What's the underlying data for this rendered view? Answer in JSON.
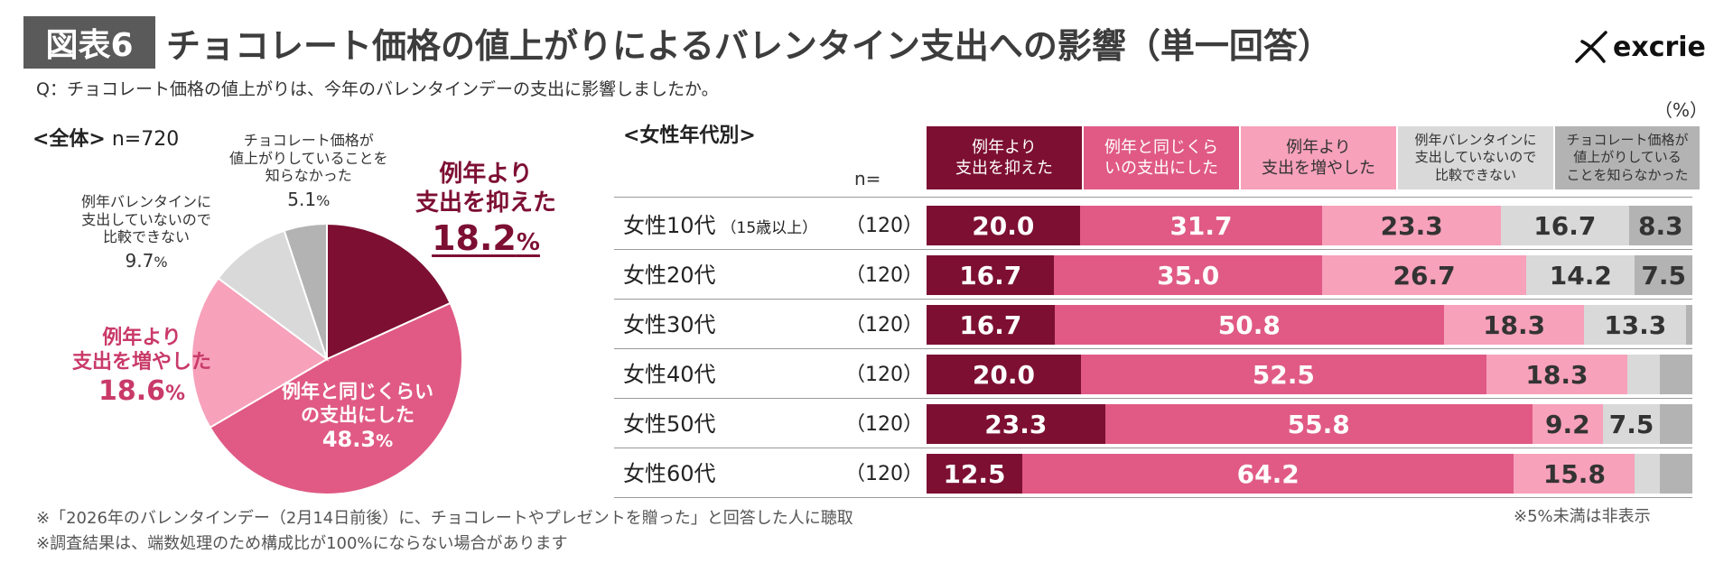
{
  "header": {
    "figure_badge": "図表6",
    "title": "チョコレート価格の値上がりによるバレンタイン支出への影響（単一回答）",
    "brand": "excrie"
  },
  "question": "Q：チョコレート価格の値上がりは、今年のバレンタインデーの支出に影響しましたか。",
  "overall": {
    "label_bold": "<全体>",
    "label_n": " n=720"
  },
  "pie_labels": {
    "suppressed_line1": "例年より",
    "suppressed_line2": "支出を抑えた",
    "suppressed_value": "18.2",
    "same_line1": "例年と同じくらい",
    "same_line2": "の支出にした",
    "same_value": "48.3",
    "increased_line1": "例年より",
    "increased_line2": "支出を増やした",
    "increased_value": "18.6",
    "cannot_line1": "例年バレンタインに",
    "cannot_line2": "支出していないので",
    "cannot_line3": "比較できない",
    "cannot_value": "9.7",
    "dontknow_line1": "チョコレート価格が",
    "dontknow_line2": "値上がりしていることを",
    "dontknow_line3": "知らなかった",
    "dontknow_value": "5.1",
    "pct": "%"
  },
  "age_section": {
    "label": "<女性年代別>",
    "n_label": "n=",
    "unit": "（%）"
  },
  "legend_headers": [
    {
      "line1": "例年より",
      "line2": "支出を抑えた",
      "line3": ""
    },
    {
      "line1": "例年と同じくら",
      "line2": "いの支出にした",
      "line3": ""
    },
    {
      "line1": "例年より",
      "line2": "支出を増やした",
      "line3": ""
    },
    {
      "line1": "例年バレンタインに",
      "line2": "支出していないので",
      "line3": "比較できない"
    },
    {
      "line1": "チョコレート価格が",
      "line2": "値上がりしている",
      "line3": "ことを知らなかった"
    }
  ],
  "row_texts": [
    {
      "label": "女性10代",
      "sub": "（15歳以上）",
      "n": "（120）"
    },
    {
      "label": "女性20代",
      "sub": "",
      "n": "（120）"
    },
    {
      "label": "女性30代",
      "sub": "",
      "n": "（120）"
    },
    {
      "label": "女性40代",
      "sub": "",
      "n": "（120）"
    },
    {
      "label": "女性50代",
      "sub": "",
      "n": "（120）"
    },
    {
      "label": "女性60代",
      "sub": "",
      "n": "（120）"
    }
  ],
  "footnotes": {
    "note1": "※「2026年のバレンタインデー（2月14日前後）に、チョコレートやプレゼントを贈った」と回答した人に聴取",
    "note2": "※調査結果は、端数処理のため構成比が100%にならない場合があります",
    "hidden_note": "※5%未満は非表示"
  },
  "colors": {
    "suppressed": "#7d0f33",
    "same": "#e05a85",
    "increased": "#f7a1bb",
    "cannot": "#d9d9d9",
    "dontknow": "#b3b3b3",
    "badge_bg": "#5a5a5a"
  },
  "chart_data": [
    {
      "type": "pie",
      "title": "<全体> n=720",
      "categories": [
        "例年より支出を抑えた",
        "例年と同じくらいの支出にした",
        "例年より支出を増やした",
        "例年バレンタインに支出していないので比較できない",
        "チョコレート価格が値上がりしていることを知らなかった"
      ],
      "values": [
        18.2,
        48.3,
        18.6,
        9.7,
        5.1
      ]
    },
    {
      "type": "bar",
      "orientation": "horizontal",
      "stacked": true,
      "unit": "%",
      "title": "<女性年代別>",
      "categories": [
        "女性10代（15歳以上）",
        "女性20代",
        "女性30代",
        "女性40代",
        "女性50代",
        "女性60代"
      ],
      "n": [
        120,
        120,
        120,
        120,
        120,
        120
      ],
      "series": [
        {
          "name": "例年より支出を抑えた",
          "values": [
            20.0,
            16.7,
            16.7,
            20.0,
            23.3,
            12.5
          ]
        },
        {
          "name": "例年と同じくらいの支出にした",
          "values": [
            31.7,
            35.0,
            50.8,
            52.5,
            55.8,
            64.2
          ]
        },
        {
          "name": "例年より支出を増やした",
          "values": [
            23.3,
            26.7,
            18.3,
            18.3,
            9.2,
            15.8
          ]
        },
        {
          "name": "例年バレンタインに支出していないので比較できない",
          "values": [
            16.7,
            14.2,
            13.3,
            4.2,
            7.5,
            3.3
          ]
        },
        {
          "name": "チョコレート価格が値上がりしていることを知らなかった",
          "values": [
            8.3,
            7.5,
            0.8,
            4.2,
            4.2,
            4.2
          ]
        }
      ],
      "display_labels": [
        [
          "20.0",
          "31.7",
          "23.3",
          "16.7",
          "8.3"
        ],
        [
          "16.7",
          "35.0",
          "26.7",
          "14.2",
          "7.5"
        ],
        [
          "16.7",
          "50.8",
          "18.3",
          "13.3",
          ""
        ],
        [
          "20.0",
          "52.5",
          "18.3",
          "",
          ""
        ],
        [
          "23.3",
          "55.8",
          "9.2",
          "7.5",
          ""
        ],
        [
          "12.5",
          "64.2",
          "15.8",
          "",
          ""
        ]
      ]
    }
  ]
}
